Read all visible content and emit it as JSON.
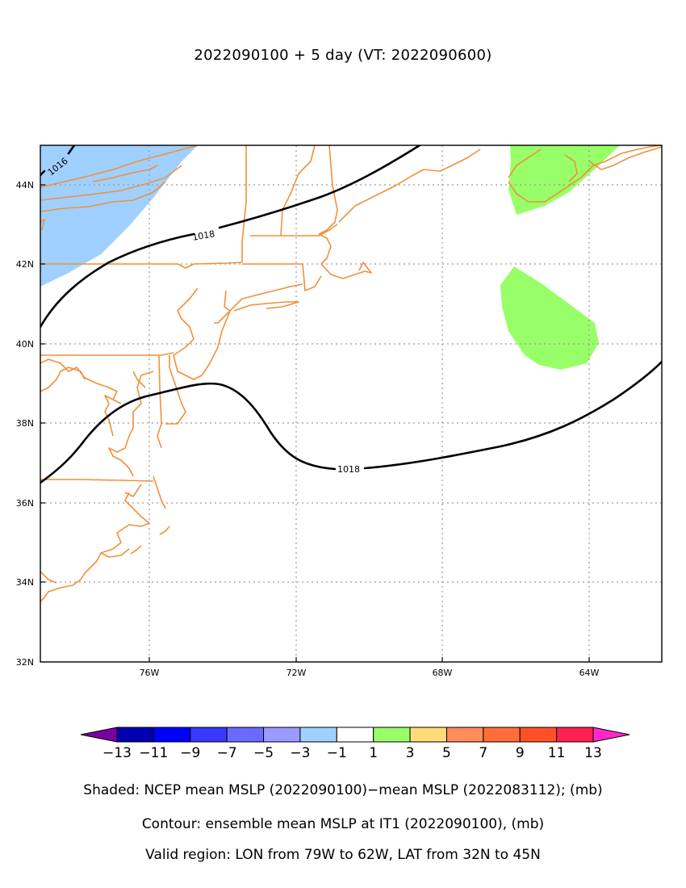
{
  "title": "2022090100 + 5 day (VT: 2022090600)",
  "map": {
    "lon_range": [
      -79,
      -62
    ],
    "lat_range": [
      32,
      45
    ],
    "x_ticks": [
      {
        "lon": -76,
        "label": "76W"
      },
      {
        "lon": -72,
        "label": "72W"
      },
      {
        "lon": -68,
        "label": "68W"
      },
      {
        "lon": -64,
        "label": "64W"
      }
    ],
    "y_ticks": [
      {
        "lat": 32,
        "label": "32N"
      },
      {
        "lat": 34,
        "label": "34N"
      },
      {
        "lat": 36,
        "label": "36N"
      },
      {
        "lat": 38,
        "label": "38N"
      },
      {
        "lat": 40,
        "label": "40N"
      },
      {
        "lat": 42,
        "label": "42N"
      },
      {
        "lat": 44,
        "label": "44N"
      }
    ],
    "grid": "dotted",
    "coastline_color": "#f0913a",
    "contour_color": "#000000",
    "contour_labels": [
      "1016",
      "1018",
      "1018"
    ]
  },
  "colorbar": {
    "labels": [
      "−13",
      "−11",
      "−9",
      "−7",
      "−5",
      "−3",
      "−1",
      "1",
      "3",
      "5",
      "7",
      "9",
      "11",
      "13"
    ],
    "colors": [
      "#0000b0",
      "#0000ff",
      "#3838ff",
      "#6a6aff",
      "#9a9aff",
      "#a0d0ff",
      "#ffffff",
      "#98ff68",
      "#ffdc78",
      "#ff8c5a",
      "#ff6e3a",
      "#ff5028",
      "#ff2050"
    ],
    "low_extend_color": "#7800a0",
    "high_extend_color": "#ff28c8"
  },
  "captions": {
    "shaded": "Shaded: NCEP mean MSLP (2022090100)−mean MSLP (2022083112); (mb)",
    "contour": "Contour: ensemble mean MSLP at IT1 (2022090100), (mb)",
    "region": "Valid region: LON from 79W to 62W, LAT from 32N to 45N"
  }
}
